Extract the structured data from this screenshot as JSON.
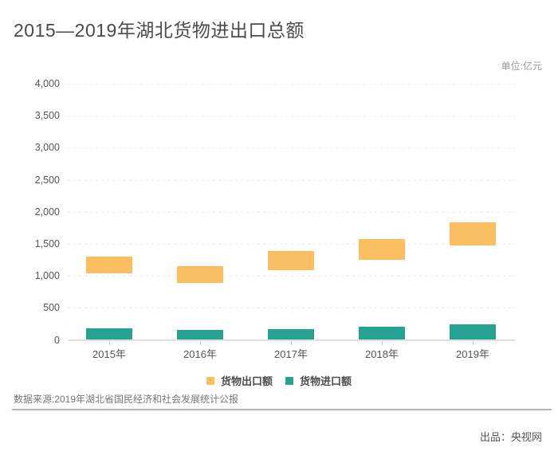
{
  "page": {
    "title": "2015—2019年湖北货物进出口总额",
    "unit_label": "单位:亿元",
    "source": "数据来源:2019年湖北省国民经济和社会发展统计公报",
    "producer": "出品：央视网"
  },
  "colors": {
    "export_bar": "#FBBE63",
    "import_bar": "#27A192",
    "title_text": "#4A4A4A",
    "axis_text": "#555555",
    "muted_text": "#9A9A9A",
    "gridline": "#ECECEC",
    "axis_line": "#E0E0E0",
    "divider": "#B6B6B6"
  },
  "chart_data": {
    "type": "bar",
    "subtype": "floating-range-columns",
    "title": "2015—2019年湖北货物进出口总额",
    "unit": "亿元",
    "categories": [
      "2015年",
      "2016年",
      "2017年",
      "2018年",
      "2019年"
    ],
    "series": [
      {
        "name": "货物出口额",
        "color": "#FBBE63",
        "ranges": [
          [
            1035,
            1300
          ],
          [
            890,
            1150
          ],
          [
            1090,
            1385
          ],
          [
            1245,
            1580
          ],
          [
            1475,
            1830
          ]
        ]
      },
      {
        "name": "货物进口额",
        "color": "#27A192",
        "ranges": [
          [
            0,
            180
          ],
          [
            0,
            150
          ],
          [
            0,
            170
          ],
          [
            0,
            210
          ],
          [
            0,
            240
          ]
        ]
      }
    ],
    "ylim": [
      0,
      4000
    ],
    "ytick_step": 500,
    "ytick_values": [
      0,
      500,
      1000,
      1500,
      2000,
      2500,
      3000,
      3500,
      4000
    ],
    "ytick_labels": [
      "0",
      "500",
      "1,000",
      "1,500",
      "2,000",
      "2,500",
      "3,000",
      "3,500",
      "4,000"
    ],
    "grid": "horizontal-dashed",
    "legend_position": "bottom-center"
  }
}
